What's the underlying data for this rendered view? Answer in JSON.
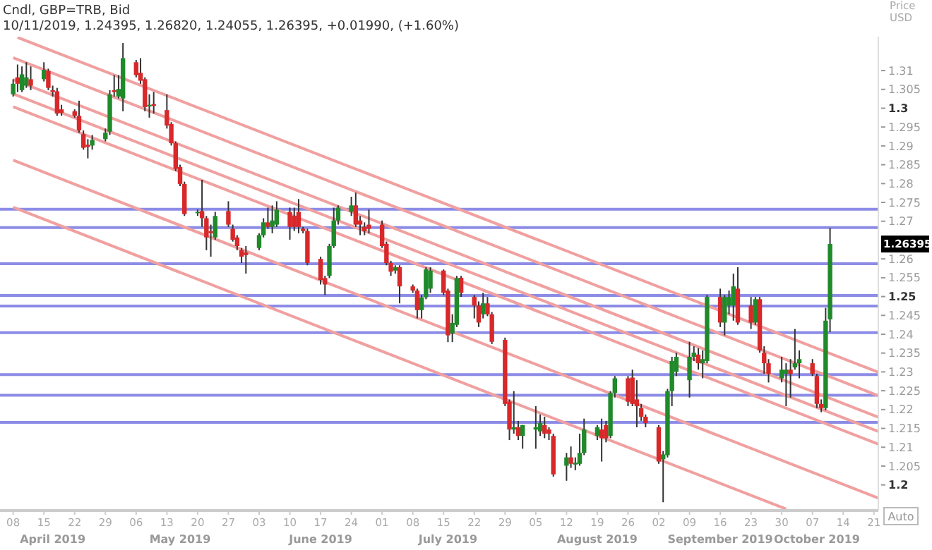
{
  "chart_data": {
    "type": "candlestick",
    "title": "Cndl, GBP=TRB, Bid",
    "subtitle": "10/11/2019, 1.24395, 1.26820, 1.24055, 1.26395, +0.01990, (+1.60%)",
    "ylabel": "Price USD",
    "x": [
      "2019-04-08",
      "2019-04-09",
      "2019-04-10",
      "2019-04-11",
      "2019-04-12",
      "2019-04-15",
      "2019-04-16",
      "2019-04-17",
      "2019-04-18",
      "2019-04-19",
      "2019-04-22",
      "2019-04-23",
      "2019-04-24",
      "2019-04-25",
      "2019-04-26",
      "2019-04-29",
      "2019-04-30",
      "2019-05-01",
      "2019-05-02",
      "2019-05-03",
      "2019-05-06",
      "2019-05-07",
      "2019-05-08",
      "2019-05-09",
      "2019-05-10",
      "2019-05-13",
      "2019-05-14",
      "2019-05-15",
      "2019-05-16",
      "2019-05-17",
      "2019-05-20",
      "2019-05-21",
      "2019-05-22",
      "2019-05-23",
      "2019-05-24",
      "2019-05-27",
      "2019-05-28",
      "2019-05-29",
      "2019-05-30",
      "2019-05-31",
      "2019-06-03",
      "2019-06-04",
      "2019-06-05",
      "2019-06-06",
      "2019-06-07",
      "2019-06-10",
      "2019-06-11",
      "2019-06-12",
      "2019-06-13",
      "2019-06-14",
      "2019-06-17",
      "2019-06-18",
      "2019-06-19",
      "2019-06-20",
      "2019-06-21",
      "2019-06-24",
      "2019-06-25",
      "2019-06-26",
      "2019-06-27",
      "2019-06-28",
      "2019-07-01",
      "2019-07-02",
      "2019-07-03",
      "2019-07-04",
      "2019-07-05",
      "2019-07-08",
      "2019-07-09",
      "2019-07-10",
      "2019-07-11",
      "2019-07-12",
      "2019-07-15",
      "2019-07-16",
      "2019-07-17",
      "2019-07-18",
      "2019-07-19",
      "2019-07-22",
      "2019-07-23",
      "2019-07-24",
      "2019-07-25",
      "2019-07-26",
      "2019-07-29",
      "2019-07-30",
      "2019-07-31",
      "2019-08-01",
      "2019-08-02",
      "2019-08-05",
      "2019-08-06",
      "2019-08-07",
      "2019-08-08",
      "2019-08-09",
      "2019-08-12",
      "2019-08-13",
      "2019-08-14",
      "2019-08-15",
      "2019-08-16",
      "2019-08-19",
      "2019-08-20",
      "2019-08-21",
      "2019-08-22",
      "2019-08-23",
      "2019-08-26",
      "2019-08-27",
      "2019-08-28",
      "2019-08-29",
      "2019-08-30",
      "2019-09-02",
      "2019-09-03",
      "2019-09-04",
      "2019-09-05",
      "2019-09-06",
      "2019-09-09",
      "2019-09-10",
      "2019-09-11",
      "2019-09-12",
      "2019-09-13",
      "2019-09-16",
      "2019-09-17",
      "2019-09-18",
      "2019-09-19",
      "2019-09-20",
      "2019-09-23",
      "2019-09-24",
      "2019-09-25",
      "2019-09-26",
      "2019-09-27",
      "2019-09-30",
      "2019-10-01",
      "2019-10-02",
      "2019-10-03",
      "2019-10-04",
      "2019-10-07",
      "2019-10-08",
      "2019-10-09",
      "2019-10-10",
      "2019-10-11"
    ],
    "ohlc": [
      [
        1.3037,
        1.3077,
        1.3031,
        1.3065
      ],
      [
        1.3082,
        1.3116,
        1.3043,
        1.3065
      ],
      [
        1.3048,
        1.3111,
        1.3043,
        1.309
      ],
      [
        1.306,
        1.3122,
        1.3054,
        1.3082
      ],
      [
        1.3077,
        1.3111,
        1.3048,
        1.306
      ],
      [
        1.3077,
        1.3122,
        1.3071,
        1.3102
      ],
      [
        1.3099,
        1.3105,
        1.3048,
        1.3054
      ],
      [
        1.3048,
        1.306,
        1.3031,
        1.3043
      ],
      [
        1.3045,
        1.3054,
        1.298,
        1.2986
      ],
      [
        1.2997,
        1.3009,
        1.298,
        1.2988
      ],
      [
        1.2992,
        1.2997,
        1.2975,
        1.298
      ],
      [
        1.298,
        1.302,
        1.2935,
        1.2941
      ],
      [
        1.2931,
        1.2941,
        1.289,
        1.2895
      ],
      [
        1.2903,
        1.2918,
        1.2867,
        1.2897
      ],
      [
        1.2901,
        1.2929,
        1.289,
        1.2916
      ],
      [
        1.2918,
        1.2946,
        1.2912,
        1.2935
      ],
      [
        1.2938,
        1.3048,
        1.2929,
        1.3037
      ],
      [
        1.3048,
        1.3088,
        1.3031,
        1.3043
      ],
      [
        1.3031,
        1.3088,
        1.3026,
        1.3051
      ],
      [
        1.3026,
        1.3173,
        1.2992,
        1.3133
      ],
      [
        1.3122,
        1.3128,
        1.3082,
        1.3088
      ],
      [
        1.3094,
        1.3133,
        1.3065,
        1.3073
      ],
      [
        1.3077,
        1.3082,
        1.2992,
        1.3003
      ],
      [
        1.3005,
        1.3037,
        1.2975,
        1.3009
      ],
      [
        1.3011,
        1.3043,
        1.2986,
        1.3006
      ],
      [
        1.2995,
        1.3037,
        1.2946,
        1.2954
      ],
      [
        1.2958,
        1.2963,
        1.2901,
        1.2907
      ],
      [
        1.2907,
        1.2912,
        1.2833,
        1.2839
      ],
      [
        1.2844,
        1.285,
        1.2793,
        1.2799
      ],
      [
        1.2799,
        1.2805,
        1.2714,
        1.2719
      ],
      [
        1.2723,
        1.2731,
        1.2714,
        1.2725
      ],
      [
        1.2727,
        1.281,
        1.2685,
        1.2708
      ],
      [
        1.2708,
        1.2714,
        1.2623,
        1.2657
      ],
      [
        1.2674,
        1.2691,
        1.2606,
        1.2668
      ],
      [
        1.2657,
        1.2725,
        1.2651,
        1.2714
      ],
      [
        1.2727,
        1.2753,
        1.2685,
        1.2691
      ],
      [
        1.268,
        1.2691,
        1.2646,
        1.2651
      ],
      [
        1.2657,
        1.2663,
        1.2623,
        1.2634
      ],
      [
        1.2623,
        1.2629,
        1.2589,
        1.2606
      ],
      [
        1.2617,
        1.2634,
        1.2561,
        1.261
      ],
      [
        1.2629,
        1.2668,
        1.2623,
        1.2663
      ],
      [
        1.2663,
        1.2708,
        1.2657,
        1.2697
      ],
      [
        1.2697,
        1.2736,
        1.268,
        1.2685
      ],
      [
        1.2685,
        1.2742,
        1.2668,
        1.2702
      ],
      [
        1.2691,
        1.2753,
        1.2685,
        1.2731
      ],
      [
        1.2725,
        1.2736,
        1.2651,
        1.2685
      ],
      [
        1.2714,
        1.2736,
        1.2674,
        1.2685
      ],
      [
        1.2725,
        1.2759,
        1.2668,
        1.2685
      ],
      [
        1.268,
        1.2685,
        1.2668,
        1.2674
      ],
      [
        1.2674,
        1.268,
        1.2583,
        1.2589
      ],
      [
        1.26,
        1.2606,
        1.2532,
        1.2544
      ],
      [
        1.2549,
        1.2555,
        1.2504,
        1.2532
      ],
      [
        1.2555,
        1.264,
        1.2549,
        1.2634
      ],
      [
        1.2634,
        1.2736,
        1.2629,
        1.2702
      ],
      [
        1.2702,
        1.2742,
        1.2691,
        1.2736
      ],
      [
        1.2725,
        1.2765,
        1.2714,
        1.2742
      ],
      [
        1.2742,
        1.2776,
        1.2685,
        1.2691
      ],
      [
        1.2702,
        1.2714,
        1.2663,
        1.2691
      ],
      [
        1.2685,
        1.2697,
        1.2663,
        1.2674
      ],
      [
        1.2691,
        1.2731,
        1.2668,
        1.268
      ],
      [
        1.2691,
        1.2702,
        1.2629,
        1.2634
      ],
      [
        1.264,
        1.2646,
        1.2583,
        1.2589
      ],
      [
        1.2589,
        1.2595,
        1.2555,
        1.2566
      ],
      [
        1.2569,
        1.2583,
        1.2561,
        1.2578
      ],
      [
        1.2578,
        1.2583,
        1.2482,
        1.2527
      ],
      [
        1.2527,
        1.2532,
        1.251,
        1.2516
      ],
      [
        1.2516,
        1.2521,
        1.2442,
        1.2464
      ],
      [
        1.2464,
        1.2504,
        1.2442,
        1.2498
      ],
      [
        1.2498,
        1.2578,
        1.2493,
        1.2572
      ],
      [
        1.2521,
        1.2578,
        1.251,
        1.2569
      ],
      [
        1.2569,
        1.2572,
        1.2504,
        1.251
      ],
      [
        1.2516,
        1.2521,
        1.2379,
        1.2397
      ],
      [
        1.2402,
        1.2453,
        1.2379,
        1.243
      ],
      [
        1.2425,
        1.2555,
        1.2419,
        1.2549
      ],
      [
        1.255,
        1.2555,
        1.2499,
        1.251
      ],
      [
        1.2499,
        1.2504,
        1.2442,
        1.2476
      ],
      [
        1.2476,
        1.2487,
        1.2419,
        1.2431
      ],
      [
        1.2453,
        1.251,
        1.2442,
        1.2482
      ],
      [
        1.2482,
        1.2499,
        1.2448,
        1.2453
      ],
      [
        1.2453,
        1.2459,
        1.2374,
        1.238
      ],
      [
        1.2385,
        1.2391,
        1.2209,
        1.2215
      ],
      [
        1.2221,
        1.2227,
        1.2119,
        1.2147
      ],
      [
        1.2147,
        1.2249,
        1.2136,
        1.2153
      ],
      [
        1.2153,
        1.217,
        1.2119,
        1.213
      ],
      [
        1.213,
        1.2159,
        1.2096,
        1.2159
      ],
      [
        1.2147,
        1.2209,
        1.2096,
        1.2153
      ],
      [
        1.2142,
        1.2187,
        1.213,
        1.2164
      ],
      [
        1.2159,
        1.2181,
        1.2124,
        1.2136
      ],
      [
        1.2147,
        1.2153,
        1.2119,
        1.2136
      ],
      [
        1.213,
        1.2136,
        1.2022,
        1.2028
      ],
      [
        1.2051,
        1.2085,
        1.2011,
        1.2073
      ],
      [
        1.2073,
        1.2102,
        1.2045,
        1.2056
      ],
      [
        1.2054,
        1.2073,
        1.2039,
        1.2059
      ],
      [
        1.2056,
        1.2136,
        1.2051,
        1.2085
      ],
      [
        1.2085,
        1.2176,
        1.2079,
        1.2147
      ],
      [
        1.213,
        1.2159,
        1.2119,
        1.2153
      ],
      [
        1.2147,
        1.2176,
        1.2062,
        1.2124
      ],
      [
        1.2159,
        1.217,
        1.2113,
        1.2124
      ],
      [
        1.213,
        1.2249,
        1.2124,
        1.2244
      ],
      [
        1.2244,
        1.2289,
        1.2232,
        1.2283
      ],
      [
        1.2283,
        1.2289,
        1.2209,
        1.2221
      ],
      [
        1.2285,
        1.2306,
        1.2209,
        1.2215
      ],
      [
        1.2227,
        1.2278,
        1.2153,
        1.2209
      ],
      [
        1.2204,
        1.2215,
        1.217,
        1.2181
      ],
      [
        1.2181,
        1.2187,
        1.2153,
        1.2164
      ],
      [
        1.2153,
        1.2159,
        1.2056,
        1.2062
      ],
      [
        1.2068,
        1.209,
        1.1954,
        1.2081
      ],
      [
        1.2079,
        1.2255,
        1.2073,
        1.2249
      ],
      [
        1.2249,
        1.234,
        1.2209,
        1.2329
      ],
      [
        1.23,
        1.2351,
        1.2289,
        1.234
      ],
      [
        1.2278,
        1.238,
        1.2232,
        1.234
      ],
      [
        1.234,
        1.2368,
        1.2329,
        1.2351
      ],
      [
        1.2346,
        1.2363,
        1.2306,
        1.2323
      ],
      [
        1.2323,
        1.2357,
        1.2283,
        1.2334
      ],
      [
        1.2329,
        1.2504,
        1.2323,
        1.2499
      ],
      [
        1.2499,
        1.2521,
        1.2419,
        1.2431
      ],
      [
        1.2431,
        1.2504,
        1.2397,
        1.2499
      ],
      [
        1.2476,
        1.2516,
        1.2453,
        1.2499
      ],
      [
        1.2476,
        1.2561,
        1.2436,
        1.2527
      ],
      [
        1.2521,
        1.2578,
        1.2425,
        1.2431
      ],
      [
        1.2476,
        1.2499,
        1.2414,
        1.2431
      ],
      [
        1.2431,
        1.2499,
        1.2425,
        1.2493
      ],
      [
        1.2493,
        1.2499,
        1.2351,
        1.2357
      ],
      [
        1.2351,
        1.2368,
        1.2295,
        1.2323
      ],
      [
        1.2323,
        1.2334,
        1.2272,
        1.2295
      ],
      [
        1.2283,
        1.234,
        1.2272,
        1.2306
      ],
      [
        1.2295,
        1.2323,
        1.2209,
        1.2306
      ],
      [
        1.2306,
        1.2334,
        1.2232,
        1.2295
      ],
      [
        1.2312,
        1.2414,
        1.2306,
        1.2323
      ],
      [
        1.2323,
        1.2357,
        1.2283,
        1.2334
      ],
      [
        1.2323,
        1.2334,
        1.2289,
        1.2295
      ],
      [
        1.2289,
        1.2295,
        1.2204,
        1.2215
      ],
      [
        1.2215,
        1.2227,
        1.2193,
        1.2204
      ],
      [
        1.2204,
        1.247,
        1.2198,
        1.2436
      ],
      [
        1.24395,
        1.2682,
        1.24055,
        1.26395
      ]
    ],
    "series": [
      {
        "type": "line",
        "color": "#f0a0a0",
        "x": [
          "2019-04-09",
          "2019-10-22"
        ],
        "values": [
          1.3188,
          1.2299
        ]
      },
      {
        "type": "line",
        "color": "#f0a0a0",
        "x": [
          "2019-04-08",
          "2019-10-22"
        ],
        "values": [
          1.3134,
          1.2237
        ]
      },
      {
        "type": "line",
        "color": "#f0a0a0",
        "x": [
          "2019-04-08",
          "2019-10-22"
        ],
        "values": [
          1.3076,
          1.218
        ]
      },
      {
        "type": "line",
        "color": "#f0a0a0",
        "x": [
          "2019-04-08",
          "2019-10-22"
        ],
        "values": [
          1.3038,
          1.2142
        ]
      },
      {
        "type": "line",
        "color": "#f0a0a0",
        "x": [
          "2019-04-08",
          "2019-10-22"
        ],
        "values": [
          1.3004,
          1.2108
        ]
      },
      {
        "type": "line",
        "color": "#f0a0a0",
        "x": [
          "2019-04-08",
          "2019-10-22"
        ],
        "values": [
          1.2862,
          1.1965
        ]
      },
      {
        "type": "line",
        "color": "#f0a0a0",
        "x": [
          "2019-04-08",
          "2019-10-01"
        ],
        "values": [
          1.2737,
          1.1936
        ]
      }
    ],
    "ref_lines": [
      {
        "axis": "y",
        "value": 1.2732,
        "color": "#8c8ce6"
      },
      {
        "axis": "y",
        "value": 1.2683,
        "color": "#8c8ce6"
      },
      {
        "axis": "y",
        "value": 1.2587,
        "color": "#8c8ce6"
      },
      {
        "axis": "y",
        "value": 1.2503,
        "color": "#8c8ce6"
      },
      {
        "axis": "y",
        "value": 1.2475,
        "color": "#8c8ce6"
      },
      {
        "axis": "y",
        "value": 1.2404,
        "color": "#8c8ce6"
      },
      {
        "axis": "y",
        "value": 1.2293,
        "color": "#8c8ce6"
      },
      {
        "axis": "y",
        "value": 1.2238,
        "color": "#8c8ce6"
      },
      {
        "axis": "y",
        "value": 1.2166,
        "color": "#8c8ce6"
      }
    ],
    "xlim": [
      "2019-04-05",
      "2019-10-22"
    ],
    "xticks": [
      {
        "value": "2019-04-08",
        "label": "08"
      },
      {
        "value": "2019-04-15",
        "label": "15"
      },
      {
        "value": "2019-04-22",
        "label": "22"
      },
      {
        "value": "2019-04-29",
        "label": "29"
      },
      {
        "value": "2019-05-06",
        "label": "06"
      },
      {
        "value": "2019-05-13",
        "label": "13"
      },
      {
        "value": "2019-05-20",
        "label": "20"
      },
      {
        "value": "2019-05-27",
        "label": "27"
      },
      {
        "value": "2019-06-03",
        "label": "03"
      },
      {
        "value": "2019-06-10",
        "label": "10"
      },
      {
        "value": "2019-06-17",
        "label": "17"
      },
      {
        "value": "2019-06-24",
        "label": "24"
      },
      {
        "value": "2019-07-01",
        "label": "01"
      },
      {
        "value": "2019-07-08",
        "label": "08"
      },
      {
        "value": "2019-07-15",
        "label": "15"
      },
      {
        "value": "2019-07-22",
        "label": "22"
      },
      {
        "value": "2019-07-29",
        "label": "29"
      },
      {
        "value": "2019-08-05",
        "label": "05"
      },
      {
        "value": "2019-08-12",
        "label": "12"
      },
      {
        "value": "2019-08-19",
        "label": "19"
      },
      {
        "value": "2019-08-26",
        "label": "26"
      },
      {
        "value": "2019-09-02",
        "label": "02"
      },
      {
        "value": "2019-09-09",
        "label": "09"
      },
      {
        "value": "2019-09-16",
        "label": "16"
      },
      {
        "value": "2019-09-23",
        "label": "23"
      },
      {
        "value": "2019-09-30",
        "label": "30"
      },
      {
        "value": "2019-10-07",
        "label": "07"
      },
      {
        "value": "2019-10-14",
        "label": "14"
      },
      {
        "value": "2019-10-21",
        "label": "21"
      }
    ],
    "x2lim": [
      "2019-04-05",
      "2019-10-22"
    ],
    "x2ticks": [
      {
        "value": "2019-04-17",
        "label": "April 2019"
      },
      {
        "value": "2019-05-16",
        "label": "May 2019"
      },
      {
        "value": "2019-06-17",
        "label": "June 2019"
      },
      {
        "value": "2019-07-16",
        "label": "July 2019"
      },
      {
        "value": "2019-08-19",
        "label": "August 2019"
      },
      {
        "value": "2019-09-16",
        "label": "September 2019"
      },
      {
        "value": "2019-10-08",
        "label": "October 2019"
      }
    ],
    "ylim": [
      1.1932,
      1.319
    ],
    "yticks": [
      1.2,
      1.205,
      1.21,
      1.215,
      1.22,
      1.225,
      1.23,
      1.235,
      1.24,
      1.245,
      1.25,
      1.255,
      1.26,
      1.265,
      1.27,
      1.275,
      1.28,
      1.285,
      1.29,
      1.295,
      1.3,
      1.305,
      1.31
    ],
    "annotations": [
      "1.26395",
      "Auto"
    ]
  }
}
